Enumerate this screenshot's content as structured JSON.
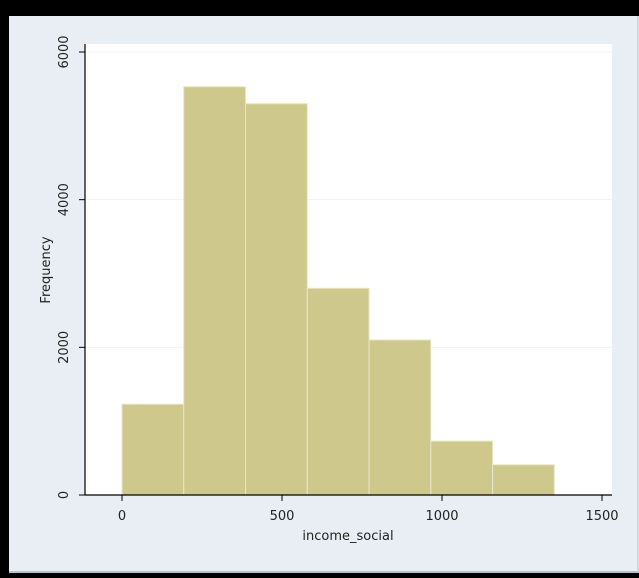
{
  "chart_data": {
    "type": "bar",
    "title": "",
    "xlabel": "income_social",
    "ylabel": "Frequency",
    "bins": [
      {
        "x0": 0,
        "x1": 193,
        "count": 1230
      },
      {
        "x0": 193,
        "x1": 386,
        "count": 5530
      },
      {
        "x0": 386,
        "x1": 579,
        "count": 5300
      },
      {
        "x0": 579,
        "x1": 772,
        "count": 2800
      },
      {
        "x0": 772,
        "x1": 965,
        "count": 2100
      },
      {
        "x0": 965,
        "x1": 1158,
        "count": 730
      },
      {
        "x0": 1158,
        "x1": 1351,
        "count": 410
      }
    ],
    "xlim": [
      -70,
      1500
    ],
    "ylim": [
      0,
      6000
    ],
    "x_ticks": [
      0,
      500,
      1000,
      1500
    ],
    "y_ticks": [
      0,
      2000,
      4000,
      6000
    ],
    "grid": true,
    "bar_color": "#cfc88c",
    "bar_edge_color": "#e9e6c8",
    "plot_background": "#ffffff",
    "outer_background": "#e8eef4"
  }
}
